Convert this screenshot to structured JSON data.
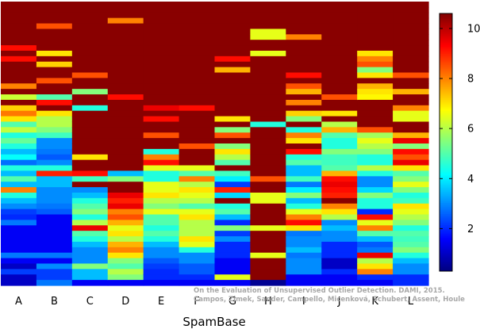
{
  "chart_data": {
    "type": "heatmap",
    "title": "",
    "xlabel": "SpamBase",
    "ylabel": "",
    "categories": [
      "A",
      "B",
      "C",
      "D",
      "E",
      "F",
      "G",
      "H",
      "I",
      "J",
      "K",
      "L"
    ],
    "colorbar": {
      "range": [
        0.3,
        10.6
      ],
      "ticks": [
        2,
        4,
        6,
        8,
        10
      ],
      "colormap": "jet"
    },
    "rows_per_column": 52,
    "note": "",
    "columns": [
      {
        "name": "A",
        "values": [
          10.5,
          10.5,
          10.5,
          10.5,
          10.5,
          10.5,
          10.5,
          10.5,
          9.2,
          10.5,
          9.2,
          10.5,
          10.5,
          10.5,
          10.5,
          8.0,
          10.5,
          6.2,
          10.5,
          7.2,
          8.1,
          7.0,
          5.0,
          6.1,
          4.5,
          5.2,
          4.5,
          3.5,
          4.2,
          2.7,
          4.5,
          3.5,
          5.0,
          3.5,
          8.0,
          4.5,
          3.5,
          3.0,
          2.2,
          2.0,
          2.8,
          1.5,
          1.5,
          1.5,
          1.5,
          1.5,
          2.8,
          1.5,
          1.0,
          2.2,
          1.0,
          1.0
        ]
      },
      {
        "name": "B",
        "values": [
          10.5,
          10.5,
          10.5,
          10.5,
          8.5,
          10.5,
          10.5,
          10.5,
          10.5,
          7.0,
          10.5,
          7.2,
          10.5,
          10.5,
          8.5,
          10.5,
          10.5,
          5.0,
          9.2,
          10.5,
          7.0,
          6.0,
          6.0,
          5.5,
          4.8,
          3.0,
          3.0,
          2.8,
          2.5,
          3.0,
          4.5,
          9.0,
          3.5,
          3.5,
          3.0,
          3.0,
          3.0,
          2.8,
          2.5,
          1.5,
          1.5,
          1.5,
          1.5,
          1.5,
          1.5,
          1.5,
          2.8,
          1.5,
          3.0,
          2.2,
          2.2,
          2.8
        ]
      },
      {
        "name": "C",
        "values": [
          10.5,
          10.5,
          10.5,
          10.5,
          10.5,
          10.5,
          10.5,
          10.5,
          10.5,
          10.5,
          10.5,
          10.5,
          10.5,
          8.5,
          10.5,
          10.5,
          5.5,
          10.5,
          10.5,
          4.5,
          10.5,
          10.5,
          10.5,
          10.5,
          10.5,
          10.5,
          10.5,
          10.5,
          7.0,
          10.5,
          10.5,
          9.2,
          4.8,
          10.5,
          3.0,
          3.5,
          4.5,
          5.0,
          5.5,
          4.5,
          6.0,
          9.5,
          5.0,
          4.5,
          3.5,
          3.0,
          3.0,
          3.0,
          5.5,
          3.5,
          3.5,
          1.5
        ]
      },
      {
        "name": "D",
        "values": [
          10.5,
          10.5,
          10.5,
          8.0,
          10.5,
          10.5,
          10.5,
          10.5,
          10.5,
          10.5,
          10.5,
          10.5,
          10.5,
          10.5,
          10.5,
          10.5,
          10.5,
          9.2,
          10.5,
          10.5,
          10.5,
          10.5,
          10.5,
          10.5,
          10.5,
          10.5,
          10.5,
          10.5,
          10.5,
          10.5,
          10.5,
          3.5,
          5.5,
          10.5,
          10.5,
          9.5,
          9.0,
          9.5,
          8.0,
          8.5,
          7.5,
          6.5,
          7.0,
          6.0,
          7.5,
          8.0,
          7.0,
          5.5,
          5.0,
          6.0,
          5.5,
          1.5
        ]
      },
      {
        "name": "E",
        "values": [
          10.5,
          10.5,
          10.5,
          10.5,
          10.5,
          10.5,
          10.5,
          10.5,
          10.5,
          10.5,
          10.5,
          10.5,
          10.5,
          10.5,
          10.5,
          10.5,
          10.5,
          10.5,
          10.5,
          9.5,
          10.5,
          9.2,
          10.5,
          10.5,
          8.5,
          10.5,
          10.5,
          4.5,
          8.0,
          9.2,
          6.5,
          4.5,
          4.5,
          6.5,
          6.5,
          7.0,
          6.0,
          5.5,
          6.5,
          5.0,
          5.0,
          4.5,
          5.0,
          4.5,
          3.5,
          3.0,
          3.0,
          2.5,
          2.2,
          2.0,
          2.0,
          1.5
        ]
      },
      {
        "name": "F",
        "values": [
          10.5,
          10.5,
          10.5,
          10.5,
          10.5,
          10.5,
          10.5,
          10.5,
          10.5,
          10.5,
          10.5,
          10.5,
          10.5,
          10.5,
          10.5,
          10.5,
          10.5,
          10.5,
          10.5,
          9.2,
          10.5,
          10.5,
          10.5,
          10.5,
          10.5,
          10.5,
          8.5,
          10.5,
          10.5,
          10.5,
          6.5,
          5.0,
          8.0,
          6.0,
          7.0,
          6.5,
          6.0,
          5.0,
          6.5,
          7.0,
          6.0,
          6.0,
          6.0,
          7.0,
          6.5,
          4.5,
          3.0,
          3.0,
          2.5,
          2.5,
          2.0,
          1.5
        ]
      },
      {
        "name": "G",
        "values": [
          10.5,
          10.5,
          10.5,
          10.5,
          10.5,
          10.5,
          10.5,
          10.5,
          10.5,
          10.5,
          9.2,
          10.5,
          7.5,
          10.5,
          10.5,
          10.5,
          10.5,
          10.5,
          10.5,
          10.5,
          10.5,
          7.0,
          10.5,
          5.5,
          8.5,
          10.5,
          5.5,
          7.0,
          6.0,
          5.0,
          10.5,
          4.8,
          4.0,
          2.2,
          9.0,
          3.8,
          10.5,
          4.5,
          5.0,
          3.5,
          2.0,
          5.5,
          2.2,
          3.0,
          2.0,
          2.0,
          2.0,
          1.5,
          1.5,
          1.5,
          6.5,
          1.5
        ]
      },
      {
        "name": "H",
        "values": [
          10.5,
          10.5,
          10.5,
          10.5,
          10.5,
          6.5,
          6.5,
          10.5,
          10.5,
          6.5,
          10.5,
          10.5,
          10.5,
          10.5,
          10.5,
          10.5,
          10.5,
          10.5,
          10.5,
          10.5,
          10.5,
          10.5,
          4.5,
          10.5,
          10.5,
          10.5,
          10.5,
          10.5,
          10.5,
          10.5,
          10.5,
          10.5,
          8.5,
          10.5,
          10.5,
          6.5,
          6.5,
          10.5,
          10.5,
          10.5,
          10.5,
          6.5,
          10.5,
          10.5,
          10.5,
          10.5,
          6.5,
          10.5,
          10.5,
          10.5,
          10.5,
          0.5
        ]
      },
      {
        "name": "I",
        "values": [
          10.5,
          10.5,
          10.5,
          10.5,
          10.5,
          10.5,
          8.0,
          10.5,
          10.5,
          10.5,
          10.5,
          10.5,
          10.5,
          9.2,
          10.5,
          8.5,
          7.5,
          10.5,
          8.0,
          10.5,
          7.2,
          5.5,
          10.5,
          4.5,
          8.0,
          7.0,
          10.5,
          9.2,
          4.5,
          5.0,
          3.5,
          3.5,
          4.8,
          2.8,
          4.0,
          5.5,
          3.5,
          4.5,
          6.5,
          8.0,
          9.2,
          7.0,
          2.8,
          3.0,
          3.0,
          3.5,
          2.8,
          3.0,
          3.0,
          3.0,
          1.5,
          1.5
        ]
      },
      {
        "name": "J",
        "values": [
          10.5,
          10.5,
          10.5,
          10.5,
          10.5,
          10.5,
          10.5,
          10.5,
          10.5,
          10.5,
          10.5,
          10.5,
          10.5,
          10.5,
          10.5,
          10.5,
          10.5,
          8.5,
          10.5,
          10.5,
          7.0,
          10.5,
          6.0,
          7.5,
          5.0,
          4.5,
          4.5,
          5.5,
          4.8,
          4.8,
          5.0,
          7.5,
          9.2,
          9.5,
          9.2,
          9.0,
          10.5,
          8.0,
          7.0,
          6.0,
          3.0,
          3.5,
          3.0,
          3.0,
          2.0,
          2.0,
          2.0,
          1.0,
          1.0,
          2.0,
          1.5,
          1.5
        ]
      },
      {
        "name": "K",
        "values": [
          10.5,
          10.5,
          10.5,
          10.5,
          10.5,
          10.5,
          10.5,
          10.5,
          10.5,
          7.0,
          8.0,
          8.5,
          5.5,
          7.0,
          10.5,
          7.5,
          7.0,
          6.8,
          10.5,
          10.5,
          10.5,
          10.5,
          10.5,
          8.5,
          5.8,
          6.5,
          6.0,
          5.5,
          4.5,
          4.5,
          6.0,
          4.5,
          3.0,
          3.0,
          3.8,
          5.5,
          4.5,
          4.5,
          2.0,
          9.2,
          6.5,
          8.0,
          5.0,
          3.5,
          2.5,
          2.8,
          9.5,
          6.0,
          7.0,
          8.0,
          2.0,
          1.5
        ]
      },
      {
        "name": "L",
        "values": [
          10.5,
          10.5,
          10.5,
          10.5,
          10.5,
          10.5,
          10.5,
          10.5,
          10.5,
          10.5,
          10.5,
          10.5,
          10.5,
          8.5,
          10.5,
          10.5,
          7.5,
          10.5,
          10.5,
          8.0,
          6.5,
          6.5,
          10.5,
          10.5,
          7.5,
          9.5,
          5.5,
          9.2,
          8.5,
          9.5,
          7.0,
          5.0,
          5.5,
          6.5,
          5.5,
          4.5,
          4.8,
          7.0,
          6.5,
          6.0,
          5.5,
          4.5,
          5.0,
          4.8,
          5.0,
          5.5,
          4.5,
          3.5,
          3.0,
          3.0,
          2.0,
          2.0
        ]
      }
    ]
  },
  "credit": {
    "line1": "On the Evaluation of Unsupervised Outlier Detection. DAMI, 2015.",
    "line2": "Campos, Zimek, Sander, Campello, Micenková, Schubert, Assent, Houle"
  }
}
